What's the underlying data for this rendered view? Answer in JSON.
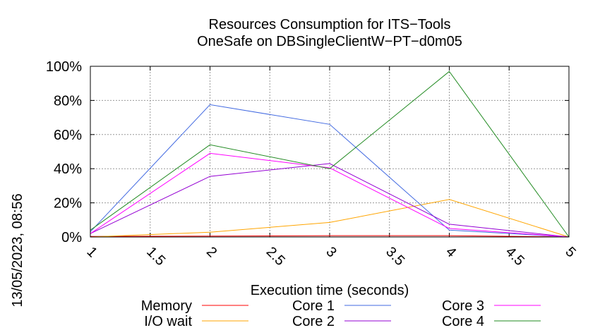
{
  "chart_data": {
    "type": "line",
    "title": "Resources Consumption for ITS−Tools",
    "subtitle": "OneSafe on DBSingleClientW−PT−d0m05",
    "xlabel": "Execution time (seconds)",
    "ylabel": "",
    "side_label": "13/05/2023, 08:56",
    "xlim": [
      1,
      5
    ],
    "ylim": [
      0,
      100
    ],
    "x_ticks": [
      "1",
      "1.5",
      "2",
      "2.5",
      "3",
      "3.5",
      "4",
      "4.5",
      "5"
    ],
    "y_ticks": [
      "0%",
      "20%",
      "40%",
      "60%",
      "80%",
      "100%"
    ],
    "grid": true,
    "legend_position": "bottom",
    "x": [
      1,
      2,
      3,
      4,
      5
    ],
    "series": [
      {
        "name": "Memory",
        "color": "#ff0000",
        "values": [
          0.3,
          0.5,
          0.8,
          0.8,
          0
        ]
      },
      {
        "name": "I/O wait",
        "color": "#ffa500",
        "values": [
          0,
          2.8,
          8.5,
          22,
          0
        ]
      },
      {
        "name": "Core 1",
        "color": "#4169e1",
        "values": [
          3,
          77.5,
          66,
          4,
          0
        ]
      },
      {
        "name": "Core 2",
        "color": "#9400d3",
        "values": [
          2,
          35.5,
          43,
          7.5,
          0
        ]
      },
      {
        "name": "Core 3",
        "color": "#ff00ff",
        "values": [
          2,
          49,
          40.5,
          5,
          0
        ]
      },
      {
        "name": "Core 4",
        "color": "#228b22",
        "values": [
          4,
          54,
          40,
          97,
          0
        ]
      }
    ]
  }
}
